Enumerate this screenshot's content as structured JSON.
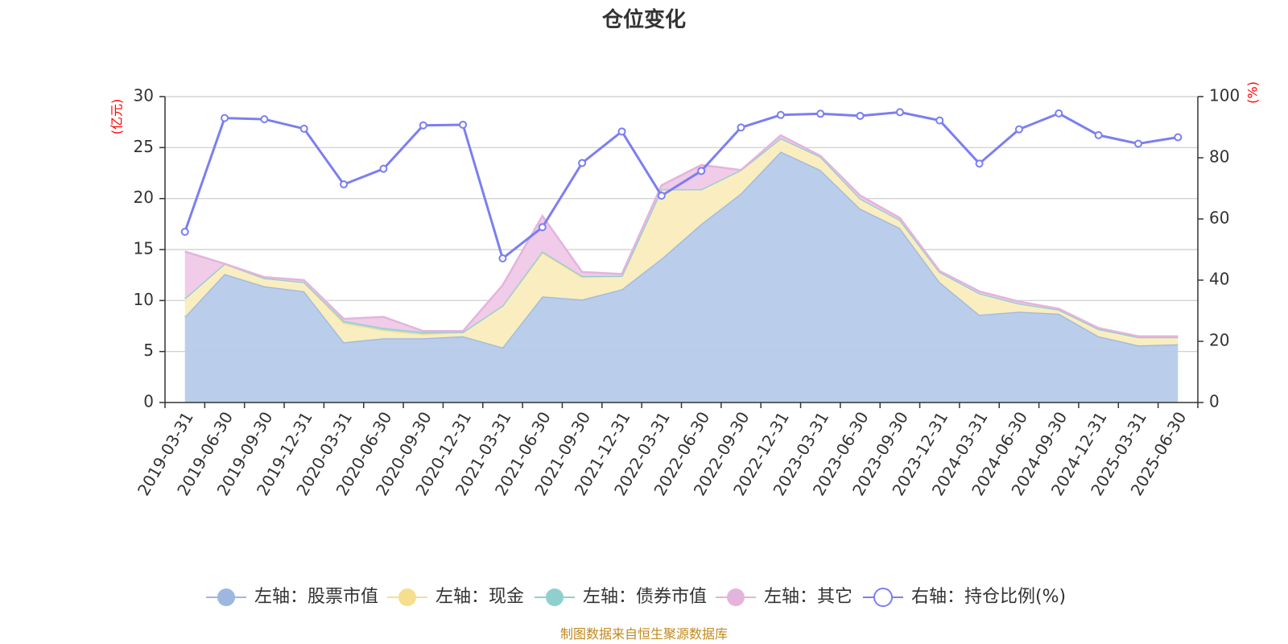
{
  "chart_data": {
    "type": "area",
    "title": "仓位变化",
    "left_unit": "(亿元)",
    "right_unit": "(%)",
    "ylim_left": [
      0,
      30
    ],
    "yticks_left": [
      0,
      5,
      10,
      15,
      20,
      25,
      30
    ],
    "ylim_right": [
      0,
      100
    ],
    "yticks_right": [
      0,
      20,
      40,
      60,
      80,
      100
    ],
    "grid": true,
    "legend_position": "bottom",
    "categories": [
      "2019-03-31",
      "2019-06-30",
      "2019-09-30",
      "2019-12-31",
      "2020-03-31",
      "2020-06-30",
      "2020-09-30",
      "2020-12-31",
      "2021-03-31",
      "2021-06-30",
      "2021-09-30",
      "2021-12-31",
      "2022-03-31",
      "2022-06-30",
      "2022-09-30",
      "2022-12-31",
      "2023-03-31",
      "2023-06-30",
      "2023-09-30",
      "2023-12-31",
      "2024-03-31",
      "2024-06-30",
      "2024-09-30",
      "2024-12-31",
      "2025-03-31",
      "2025-06-30"
    ],
    "series": [
      {
        "name": "左轴：股票市值",
        "axis": "left",
        "color": "#9db7e0",
        "fill": "#b6cbea",
        "values": [
          8.4,
          12.6,
          11.4,
          10.9,
          5.9,
          6.3,
          6.3,
          6.5,
          5.4,
          10.4,
          10.1,
          11.1,
          14.1,
          17.5,
          20.5,
          24.6,
          22.8,
          19.0,
          17.1,
          11.8,
          8.6,
          8.9,
          8.7,
          6.5,
          5.6,
          5.7
        ]
      },
      {
        "name": "左轴：现金",
        "axis": "left",
        "color": "#f5df8e",
        "fill": "#faedbd",
        "values": [
          1.8,
          1.0,
          0.8,
          0.9,
          1.9,
          0.8,
          0.4,
          0.4,
          4.1,
          4.3,
          2.2,
          1.3,
          6.8,
          3.4,
          2.3,
          1.3,
          1.3,
          1.0,
          0.8,
          1.0,
          2.1,
          0.8,
          0.4,
          0.7,
          0.8,
          0.7
        ]
      },
      {
        "name": "左轴：债券市值",
        "axis": "left",
        "color": "#8fd0cf",
        "fill": "#a8dbda",
        "values": [
          0,
          0,
          0,
          0,
          0.2,
          0.2,
          0.2,
          0,
          0,
          0.1,
          0.1,
          0,
          0,
          0,
          0,
          0,
          0,
          0,
          0,
          0,
          0,
          0,
          0,
          0,
          0,
          0
        ]
      },
      {
        "name": "左轴：其它",
        "axis": "left",
        "color": "#e4b4dc",
        "fill": "#efc9e8",
        "values": [
          4.6,
          0,
          0.1,
          0.2,
          0.2,
          1.1,
          0.1,
          0.1,
          2.0,
          3.5,
          0.4,
          0.2,
          0.4,
          2.4,
          0,
          0.3,
          0.1,
          0.3,
          0.2,
          0.1,
          0.2,
          0.2,
          0.1,
          0.1,
          0.1,
          0.1
        ]
      },
      {
        "name": "右轴：持仓比例(%)",
        "axis": "right",
        "color": "#7b7ff0",
        "values": [
          55.8,
          93.0,
          92.6,
          89.5,
          71.3,
          76.4,
          90.6,
          90.8,
          47.1,
          57.3,
          78.3,
          88.6,
          67.6,
          75.7,
          89.9,
          94.0,
          94.4,
          93.7,
          94.9,
          92.2,
          78.1,
          89.3,
          94.5,
          87.4,
          84.6,
          86.7
        ]
      }
    ]
  },
  "footer": {
    "source": "制图数据来自恒生聚源数据库"
  }
}
